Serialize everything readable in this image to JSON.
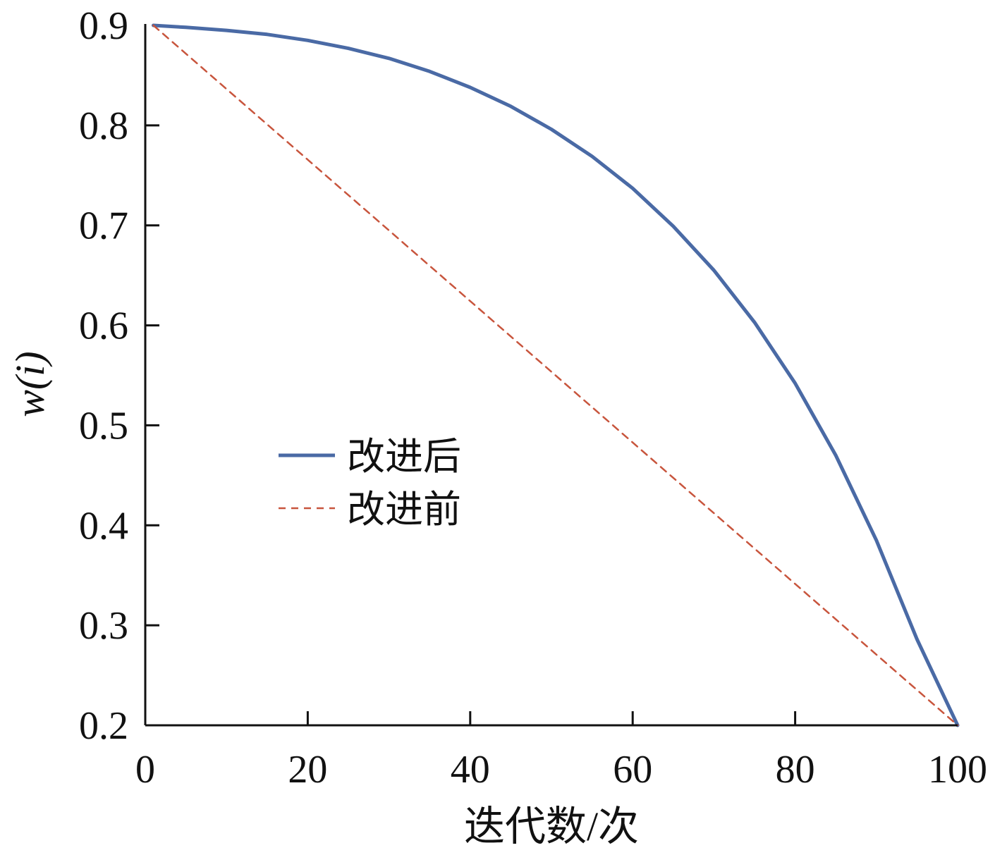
{
  "chart_data": {
    "type": "line",
    "xlabel": "迭代数/次",
    "ylabel": "w(i)",
    "xlim": [
      0,
      100
    ],
    "ylim": [
      0.2,
      0.9
    ],
    "xticks": [
      0,
      20,
      40,
      60,
      80,
      100
    ],
    "yticks": [
      0.2,
      0.3,
      0.4,
      0.5,
      0.6,
      0.7,
      0.8,
      0.9
    ],
    "xtick_labels": [
      "0",
      "20",
      "40",
      "60",
      "80",
      "100"
    ],
    "ytick_labels": [
      "0.2",
      "0.3",
      "0.4",
      "0.5",
      "0.6",
      "0.7",
      "0.8",
      "0.9"
    ],
    "grid": false,
    "legend": "center-left",
    "series": [
      {
        "name": "改进后",
        "color": "#4a6aa5",
        "style": "solid",
        "x": [
          1,
          5,
          10,
          15,
          20,
          25,
          30,
          35,
          40,
          45,
          50,
          55,
          60,
          65,
          70,
          75,
          80,
          85,
          90,
          95,
          100
        ],
        "y": [
          0.9,
          0.898,
          0.895,
          0.891,
          0.885,
          0.877,
          0.867,
          0.854,
          0.838,
          0.819,
          0.796,
          0.769,
          0.737,
          0.699,
          0.655,
          0.603,
          0.542,
          0.47,
          0.385,
          0.286,
          0.2
        ]
      },
      {
        "name": "改进前",
        "color": "#c8553d",
        "style": "dashed",
        "x": [
          1,
          100
        ],
        "y": [
          0.9,
          0.2
        ]
      }
    ]
  }
}
